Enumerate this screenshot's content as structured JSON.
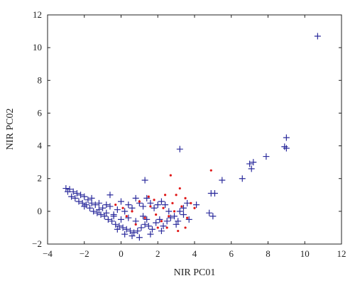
{
  "chart_data": {
    "type": "scatter",
    "title": "",
    "xlabel": "NIR PC01",
    "ylabel": "NIR PC02",
    "xlim": [
      -4,
      12
    ],
    "ylim": [
      -2,
      12
    ],
    "xticks": [
      -4,
      -2,
      0,
      2,
      4,
      6,
      8,
      10,
      12
    ],
    "yticks": [
      -2,
      0,
      2,
      4,
      6,
      8,
      10,
      12
    ],
    "grid": false,
    "legend": "none",
    "colors": {
      "series_1": "#2b2b9c",
      "series_2": "#e01818",
      "axis": "#222222"
    },
    "series": [
      {
        "marker": "plus",
        "color": "#2b2b9c",
        "points": [
          [
            10.7,
            10.7
          ],
          [
            9.0,
            4.5
          ],
          [
            8.9,
            3.95
          ],
          [
            9.0,
            3.85
          ],
          [
            7.9,
            3.35
          ],
          [
            7.2,
            3.0
          ],
          [
            7.0,
            2.9
          ],
          [
            7.1,
            2.6
          ],
          [
            6.6,
            2.0
          ],
          [
            5.5,
            1.9
          ],
          [
            3.2,
            3.8
          ],
          [
            1.3,
            1.9
          ],
          [
            -0.6,
            1.0
          ],
          [
            4.9,
            1.1
          ],
          [
            5.1,
            1.1
          ],
          [
            4.8,
            -0.1
          ],
          [
            5.0,
            -0.3
          ],
          [
            4.1,
            0.4
          ],
          [
            3.6,
            0.5
          ],
          [
            3.4,
            0.2
          ],
          [
            3.2,
            0.0
          ],
          [
            3.4,
            -0.2
          ],
          [
            3.7,
            -0.5
          ],
          [
            3.1,
            -0.6
          ],
          [
            2.9,
            -0.3
          ],
          [
            2.6,
            0.0
          ],
          [
            2.4,
            0.4
          ],
          [
            2.2,
            0.6
          ],
          [
            2.0,
            0.4
          ],
          [
            1.8,
            0.2
          ],
          [
            1.6,
            0.5
          ],
          [
            1.4,
            0.8
          ],
          [
            1.2,
            0.3
          ],
          [
            1.0,
            0.5
          ],
          [
            0.8,
            0.8
          ],
          [
            0.6,
            0.2
          ],
          [
            0.4,
            0.4
          ],
          [
            0.2,
            0.0
          ],
          [
            0.0,
            0.6
          ],
          [
            -0.2,
            0.1
          ],
          [
            -0.4,
            -0.2
          ],
          [
            -0.6,
            0.3
          ],
          [
            -0.8,
            -0.1
          ],
          [
            -1.0,
            0.2
          ],
          [
            -1.2,
            0.1
          ],
          [
            -1.4,
            0.4
          ],
          [
            -1.6,
            0.5
          ],
          [
            -1.8,
            0.7
          ],
          [
            -2.0,
            0.9
          ],
          [
            -2.2,
            1.0
          ],
          [
            -2.4,
            1.1
          ],
          [
            -2.6,
            1.2
          ],
          [
            -2.8,
            1.35
          ],
          [
            -3.0,
            1.4
          ],
          [
            -2.9,
            1.2
          ],
          [
            -2.7,
            0.9
          ],
          [
            -2.5,
            0.8
          ],
          [
            -2.3,
            0.6
          ],
          [
            -2.1,
            0.5
          ],
          [
            -1.9,
            0.4
          ],
          [
            -1.7,
            0.2
          ],
          [
            -1.5,
            0.0
          ],
          [
            -1.3,
            -0.1
          ],
          [
            -1.1,
            -0.2
          ],
          [
            -0.9,
            -0.3
          ],
          [
            -0.7,
            -0.5
          ],
          [
            -0.5,
            -0.6
          ],
          [
            -0.3,
            -0.8
          ],
          [
            -0.1,
            -0.9
          ],
          [
            0.1,
            -1.0
          ],
          [
            0.3,
            -1.1
          ],
          [
            0.5,
            -1.2
          ],
          [
            0.7,
            -1.3
          ],
          [
            0.9,
            -1.2
          ],
          [
            1.1,
            -1.0
          ],
          [
            1.3,
            -0.8
          ],
          [
            1.5,
            -0.9
          ],
          [
            1.7,
            -1.1
          ],
          [
            1.9,
            -0.7
          ],
          [
            2.1,
            -0.5
          ],
          [
            2.3,
            -0.9
          ],
          [
            2.5,
            -0.6
          ],
          [
            2.7,
            -0.4
          ],
          [
            0.6,
            -1.5
          ],
          [
            0.2,
            -1.4
          ],
          [
            1.0,
            -1.6
          ],
          [
            -0.2,
            -1.1
          ],
          [
            1.6,
            -1.4
          ],
          [
            2.2,
            -1.2
          ],
          [
            3.0,
            -0.8
          ],
          [
            -1.6,
            0.8
          ],
          [
            -2.0,
            0.3
          ],
          [
            -1.2,
            0.5
          ],
          [
            -0.8,
            0.4
          ],
          [
            0.4,
            -0.4
          ],
          [
            0.8,
            -0.6
          ],
          [
            1.2,
            -0.3
          ],
          [
            1.4,
            -0.5
          ],
          [
            0.0,
            -0.5
          ],
          [
            -0.4,
            -0.3
          ]
        ]
      },
      {
        "marker": "dot",
        "color": "#e01818",
        "points": [
          [
            4.9,
            2.5
          ],
          [
            2.7,
            2.2
          ],
          [
            3.2,
            1.4
          ],
          [
            2.4,
            1.0
          ],
          [
            1.5,
            0.9
          ],
          [
            3.0,
            1.0
          ],
          [
            3.5,
            0.8
          ],
          [
            2.8,
            0.5
          ],
          [
            3.3,
            0.3
          ],
          [
            1.0,
            0.6
          ],
          [
            0.6,
            0.0
          ],
          [
            1.9,
            -0.2
          ],
          [
            2.6,
            -0.3
          ],
          [
            3.5,
            -1.0
          ],
          [
            3.1,
            -1.2
          ],
          [
            2.0,
            -1.0
          ],
          [
            2.2,
            -0.6
          ],
          [
            1.3,
            -0.4
          ],
          [
            0.3,
            -0.3
          ],
          [
            -0.3,
            0.4
          ],
          [
            1.6,
            0.3
          ],
          [
            2.9,
            0.0
          ],
          [
            3.6,
            -0.4
          ],
          [
            4.0,
            0.2
          ],
          [
            2.5,
            -1.0
          ],
          [
            0.8,
            -0.8
          ],
          [
            1.8,
            0.7
          ],
          [
            0.1,
            0.2
          ],
          [
            3.8,
            0.5
          ],
          [
            2.3,
            0.2
          ]
        ]
      }
    ]
  }
}
